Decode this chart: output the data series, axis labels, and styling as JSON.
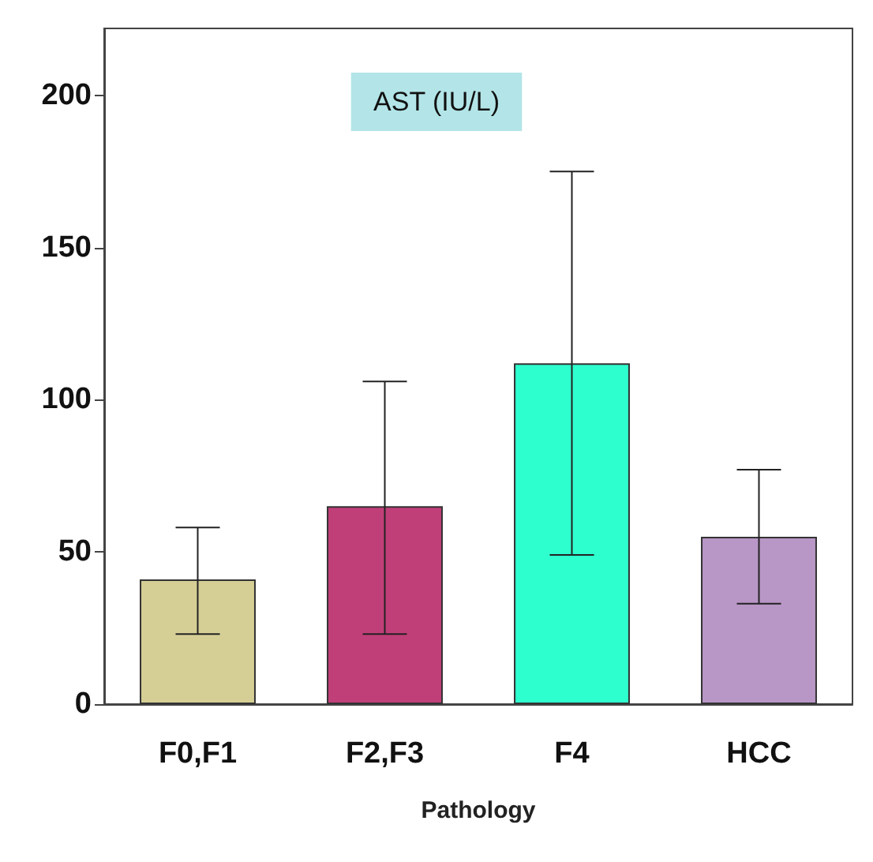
{
  "chart_data": {
    "type": "bar",
    "title": "AST (IU/L)",
    "xlabel": "Pathology",
    "categories": [
      "F0,F1",
      "F2,F3",
      "F4",
      "HCC"
    ],
    "values": [
      41,
      65,
      112,
      55
    ],
    "colors": [
      "#d5cf96",
      "#c13f78",
      "#2effce",
      "#b896c6"
    ],
    "errors": [
      [
        23,
        58
      ],
      [
        23,
        106
      ],
      [
        49,
        175
      ],
      [
        33,
        77
      ]
    ],
    "ylim": [
      0,
      222
    ],
    "yticks": [
      0,
      50,
      100,
      150,
      200
    ],
    "grid": false
  }
}
